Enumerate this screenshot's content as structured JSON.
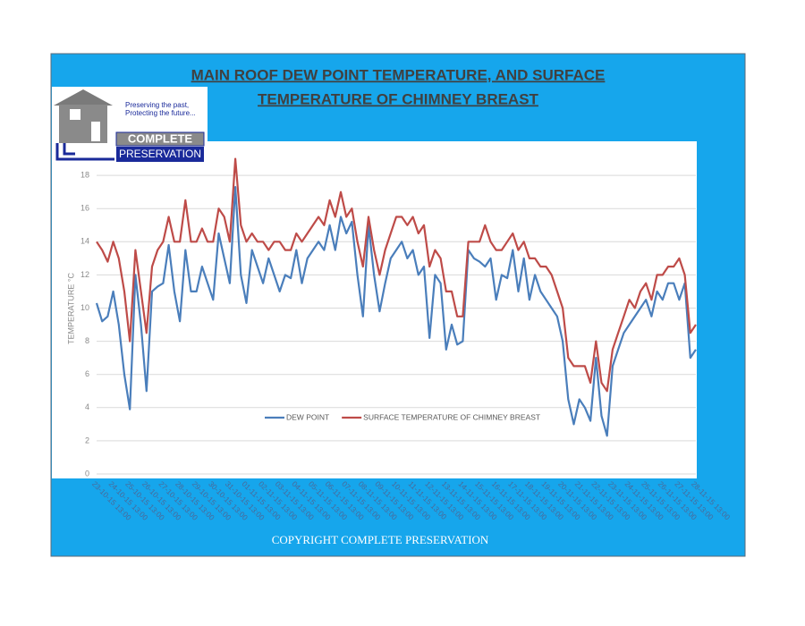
{
  "logo": {
    "tagline": [
      "Preserving the past,",
      "Protecting the future..."
    ],
    "name": [
      "COMPLETE",
      "PRESERVATION"
    ]
  },
  "chart_data": {
    "type": "line",
    "title": [
      "MAIN ROOF DEW POINT TEMPERATURE, AND SURFACE",
      "TEMPERATURE OF CHIMNEY BREAST"
    ],
    "y_label": "TEMPERATURE °C",
    "footer": "COPYRIGHT COMPLETE PRESERVATION",
    "categories": [
      "23-10-15 13:00",
      null,
      null,
      "24-10-15 13:00",
      null,
      null,
      "25-10-15 13:00",
      null,
      null,
      "26-10-15 13:00",
      null,
      null,
      "27-10-15 13:00",
      null,
      null,
      "28-10-15 13:00",
      null,
      null,
      "29-10-15 13:00",
      null,
      null,
      "30-10-15 13:00",
      null,
      null,
      "31-10-15 13:00",
      null,
      null,
      "01-11-15 13:00",
      null,
      null,
      "02-11-15 13:00",
      null,
      null,
      "03-11-15 13:00",
      null,
      null,
      "04-11-15 13:00",
      null,
      null,
      "05-11-15 13:00",
      null,
      null,
      "06-11-15 13:00",
      null,
      null,
      "07-11-15 13:00",
      null,
      null,
      "08-11-15 13:00",
      null,
      null,
      "09-11-15 13:00",
      null,
      null,
      "10-11-15 13:00",
      null,
      null,
      "11-11-15 13:00",
      null,
      null,
      "12-11-15 13:00",
      null,
      null,
      "13-11-15 13:00",
      null,
      null,
      "14-11-15 13:00",
      null,
      null,
      "15-11-15 13:00",
      null,
      null,
      "16-11-15 13:00",
      null,
      null,
      "17-11-15 13:00",
      null,
      null,
      "18-11-15 13:00",
      null,
      null,
      "19-11-15 13:00",
      null,
      null,
      "20-11-15 13:00",
      null,
      null,
      "21-11-15 13:00",
      null,
      null,
      "22-11-15 13:00",
      null,
      null,
      "23-11-15 13:00",
      null,
      null,
      "24-11-15 13:00",
      null,
      null,
      "25-11-15 13:00",
      null,
      null,
      "26-11-15 13:00",
      null,
      null,
      "27-11-15 13:00",
      null,
      null,
      "28-11-15 13:00"
    ],
    "series": [
      {
        "name": "DEW POINT",
        "color": "#4a7ebb",
        "values": [
          10.3,
          9.2,
          9.5,
          11,
          9,
          6,
          3.9,
          12,
          9,
          5,
          11,
          11.3,
          11.5,
          13.8,
          11,
          9.2,
          13.5,
          11,
          11,
          12.5,
          11.5,
          10.5,
          14.5,
          13,
          11.5,
          17.3,
          12,
          10.3,
          13.5,
          12.5,
          11.5,
          13,
          12,
          11,
          12,
          11.8,
          13.5,
          11.5,
          13,
          13.5,
          14,
          13.5,
          15,
          13.5,
          15.5,
          14.5,
          15.2,
          12,
          9.5,
          15,
          12,
          9.8,
          11.5,
          13,
          13.5,
          14,
          13,
          13.5,
          12,
          12.5,
          8.2,
          12,
          11.5,
          7.5,
          9,
          7.8,
          8,
          13.5,
          13,
          12.8,
          12.5,
          13,
          10.5,
          12,
          11.8,
          13.5,
          11,
          13,
          10.5,
          12,
          11,
          10.5,
          10,
          9.5,
          8,
          4.5,
          3,
          4.5,
          4,
          3.2,
          7,
          3.5,
          2.3,
          6.5,
          7.5,
          8.5,
          9,
          9.5,
          10,
          10.5,
          9.5,
          11,
          10.5,
          11.5,
          11.5,
          10.5,
          11.5,
          7,
          7.5
        ]
      },
      {
        "name": "SURFACE TEMPERATURE OF CHIMNEY BREAST",
        "color": "#be4b48",
        "values": [
          14,
          13.5,
          12.8,
          14,
          13,
          11,
          8,
          13.5,
          11,
          8.5,
          12.5,
          13.5,
          14,
          15.5,
          14,
          14,
          16.5,
          14,
          14,
          14.8,
          14,
          14,
          16,
          15.5,
          14,
          19,
          15,
          14,
          14.5,
          14,
          14,
          13.5,
          14,
          14,
          13.5,
          13.5,
          14.5,
          14,
          14.5,
          15,
          15.5,
          15,
          16.5,
          15.5,
          17,
          15.5,
          16,
          14,
          12.5,
          15.5,
          13.5,
          12,
          13.5,
          14.5,
          15.5,
          15.5,
          15,
          15.5,
          14.5,
          15,
          12.5,
          13.5,
          13,
          11,
          11,
          9.5,
          9.5,
          14,
          14,
          14,
          15,
          14,
          13.5,
          13.5,
          14,
          14.5,
          13.5,
          14,
          13,
          13,
          12.5,
          12.5,
          12,
          11,
          10,
          7,
          6.5,
          6.5,
          6.5,
          5.5,
          8,
          5.5,
          5,
          7.5,
          8.5,
          9.5,
          10.5,
          10,
          11,
          11.5,
          10.5,
          12,
          12,
          12.5,
          12.5,
          13,
          12,
          8.5,
          9
        ]
      }
    ],
    "ylim": [
      0,
      20
    ],
    "yticks": [
      0,
      2,
      4,
      6,
      8,
      10,
      12,
      14,
      16,
      18
    ],
    "grid": true,
    "legend": "bottom"
  }
}
